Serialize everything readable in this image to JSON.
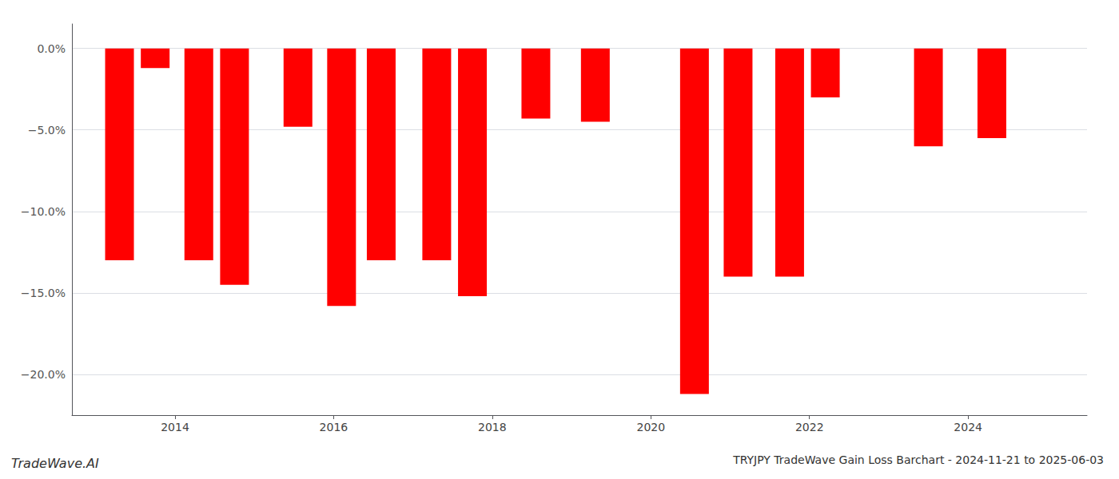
{
  "chart_data": {
    "type": "bar",
    "title": "TRYJPY TradeWave Gain Loss Barchart - 2024-11-21 to 2025-06-03",
    "annotations": [
      "TradeWave.AI"
    ],
    "x": [
      2013.3,
      2013.75,
      2014.3,
      2014.75,
      2015.55,
      2016.1,
      2016.6,
      2017.3,
      2017.75,
      2018.55,
      2019.3,
      2020.55,
      2021.1,
      2021.75,
      2022.2,
      2023.5,
      2024.3
    ],
    "values": [
      -13.0,
      -1.2,
      -13.0,
      -14.5,
      -4.8,
      -15.8,
      -13.0,
      -13.0,
      -15.2,
      -4.3,
      -4.5,
      -21.2,
      -14.0,
      -14.0,
      -3.0,
      -6.0,
      -5.5
    ],
    "color": "#ff0000",
    "xlim": [
      2012.7,
      2025.5
    ],
    "xticks": [
      2014,
      2016,
      2018,
      2020,
      2022,
      2024
    ],
    "ylim": [
      -22.5,
      1.5
    ],
    "yticks": [
      {
        "value": 0.0,
        "label": "0.0%"
      },
      {
        "value": -5.0,
        "label": "−5.0%"
      },
      {
        "value": -10.0,
        "label": "−10.0%"
      },
      {
        "value": -15.0,
        "label": "−15.0%"
      },
      {
        "value": -20.0,
        "label": "−20.0%"
      }
    ],
    "grid": true
  }
}
